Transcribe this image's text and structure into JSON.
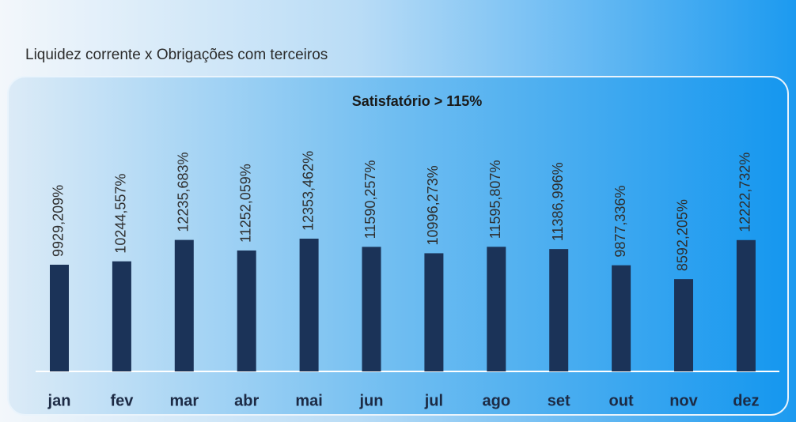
{
  "chart_data": {
    "type": "bar",
    "title": "Liquidez corrente x  Obrigações com terceiros",
    "subtitle": "Satisfatório  > 115%",
    "categories": [
      "jan",
      "fev",
      "mar",
      "abr",
      "mai",
      "jun",
      "jul",
      "ago",
      "set",
      "out",
      "nov",
      "dez"
    ],
    "values": [
      9929.209,
      10244.557,
      12235.683,
      11252.059,
      12353.462,
      11590.257,
      10996.273,
      11595.807,
      11386.996,
      9877.336,
      8592.205,
      12222.732
    ],
    "value_labels": [
      "9929,209%",
      "10244,557%",
      "12235,683%",
      "11252,059%",
      "12353,462%",
      "11590,257%",
      "10996,273%",
      "11595,807%",
      "11386,996%",
      "9877,336%",
      "8592,205%",
      "12222,732%"
    ],
    "color": "#1b3358"
  }
}
